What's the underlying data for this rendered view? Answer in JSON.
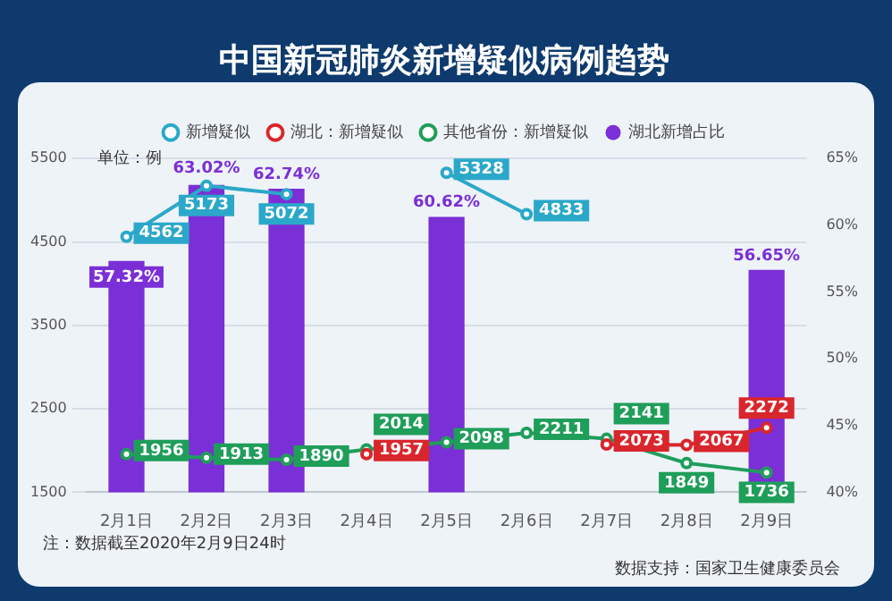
{
  "chart_data": {
    "type": "bar",
    "title": "中国新冠肺炎新增疑似病例趋势",
    "categories": [
      "2月1日",
      "2月2日",
      "2月3日",
      "2月4日",
      "2月5日",
      "2月6日",
      "2月7日",
      "2月8日",
      "2月9日"
    ],
    "series": [
      {
        "name": "湖北新增占比",
        "axis": "y2",
        "color": "#7b2fd6",
        "values": [
          57.32,
          63.02,
          62.74,
          null,
          60.62,
          null,
          null,
          null,
          56.65
        ],
        "value_labels": [
          "57.32%",
          "63.02%",
          "62.74%",
          null,
          "60.62%",
          null,
          null,
          null,
          "56.65%"
        ]
      },
      {
        "name": "新增疑似",
        "type": "line",
        "color": "#2ba8c9",
        "values": [
          4562,
          5173,
          5072,
          null,
          5328,
          4833,
          null,
          null,
          null
        ],
        "value_labels": [
          "4562",
          "5173",
          "5072",
          null,
          "5328",
          "4833",
          null,
          null,
          null
        ]
      },
      {
        "name": "湖北：新增疑似",
        "type": "line",
        "color": "#d9262c",
        "values": [
          null,
          null,
          null,
          1957,
          null,
          null,
          2073,
          2067,
          2272
        ],
        "value_labels": [
          null,
          null,
          null,
          "1957",
          null,
          null,
          "2073",
          "2067",
          "2272"
        ]
      },
      {
        "name": "其他省份：新增疑似",
        "type": "line",
        "color": "#1f9e5a",
        "values": [
          1956,
          1913,
          1890,
          2014,
          2098,
          2211,
          2141,
          1849,
          1736
        ],
        "value_labels": [
          "1956",
          "1913",
          "1890",
          "2014",
          "2098",
          "2211",
          "2141",
          "1849",
          "1736"
        ]
      }
    ],
    "ylim": [
      1500,
      5500
    ],
    "yticks": [
      1500,
      2500,
      3500,
      4500,
      5500
    ],
    "y2lim": [
      40,
      65
    ],
    "y2ticks": [
      {
        "value": 40,
        "label": "40%"
      },
      {
        "value": 45,
        "label": "45%"
      },
      {
        "value": 50,
        "label": "50%"
      },
      {
        "value": 55,
        "label": "55%"
      },
      {
        "value": 60,
        "label": "60%"
      },
      {
        "value": 65,
        "label": "65%"
      }
    ],
    "grid": "y",
    "legend": "top",
    "marker": "circle",
    "annotations": [
      "单位：例",
      "注：数据截至2020年2月9日24时",
      "数据支持：国家卫生健康委员会"
    ]
  }
}
